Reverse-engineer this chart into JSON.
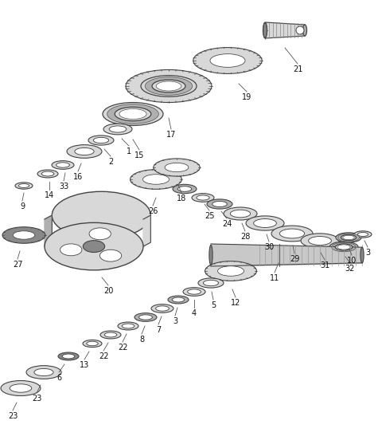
{
  "bg_color": "#ffffff",
  "fig_width": 4.8,
  "fig_height": 5.57,
  "dpi": 100,
  "lc": "#444444",
  "fc_light": "#d8d8d8",
  "fc_mid": "#b0b0b0",
  "fc_dark": "#888888",
  "fc_white": "#ffffff",
  "label_fs": 7.0,
  "label_color": "#111111"
}
